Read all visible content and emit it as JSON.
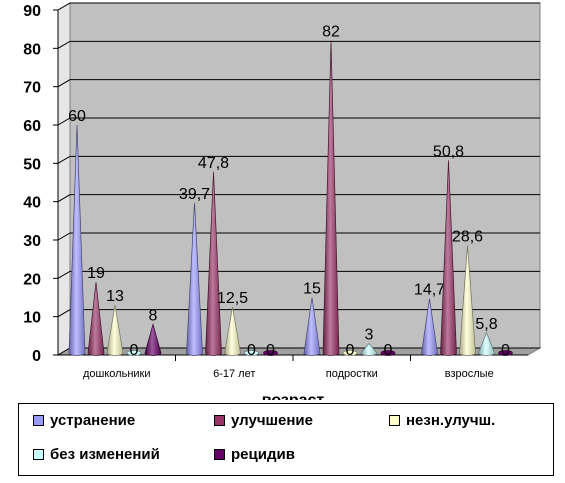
{
  "chart_data": {
    "type": "bar",
    "xlabel": "возраст",
    "ylim": [
      0,
      90
    ],
    "yticks": [
      "0",
      "10",
      "20",
      "30",
      "40",
      "50",
      "60",
      "70",
      "80",
      "90"
    ],
    "categories": [
      "дошкольники",
      "6-17 лет",
      "подростки",
      "взрослые"
    ],
    "series": [
      {
        "name": "устранение",
        "values": [
          60,
          39.7,
          15,
          14.7
        ],
        "labels": [
          "60",
          "39,7",
          "15",
          "14,7"
        ],
        "color": "#9999ff"
      },
      {
        "name": "улучшение",
        "values": [
          19,
          47.8,
          82,
          50.8
        ],
        "labels": [
          "19",
          "47,8",
          "82",
          "50,8"
        ],
        "color": "#993366"
      },
      {
        "name": "незн.улучш.",
        "values": [
          13,
          12.5,
          0,
          28.6
        ],
        "labels": [
          "13",
          "12,5",
          "0",
          "28,6"
        ],
        "color": "#ffffcc"
      },
      {
        "name": "без изменений",
        "values": [
          0,
          0,
          3,
          5.8
        ],
        "labels": [
          "0",
          "0",
          "3",
          "5,8"
        ],
        "color": "#ccffff"
      },
      {
        "name": "рецидив",
        "values": [
          8,
          0,
          0,
          0
        ],
        "labels": [
          "8",
          "0",
          "0",
          "0"
        ],
        "color": "#660066"
      }
    ],
    "grid": true,
    "legend": "bottom"
  }
}
